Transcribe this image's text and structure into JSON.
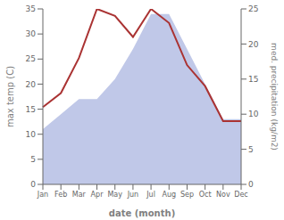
{
  "chart_data": {
    "type": "line",
    "categories": [
      "Jan",
      "Feb",
      "Mar",
      "Apr",
      "May",
      "Jun",
      "Jul",
      "Aug",
      "Sep",
      "Oct",
      "Nov",
      "Dec"
    ],
    "xlabel": "date (month)",
    "ylabel": "max temp (C)",
    "y2label": "med. precipitation (kg/m2)",
    "ylim": [
      0,
      35
    ],
    "yticks": [
      0,
      5,
      10,
      15,
      20,
      25,
      30,
      35
    ],
    "y2lim": [
      0,
      25
    ],
    "y2ticks": [
      0,
      5,
      10,
      15,
      20,
      25
    ],
    "series": [
      {
        "type": "area",
        "color": "#c0c8e8",
        "values": [
          11,
          14,
          17,
          17,
          21,
          27,
          34,
          34,
          27,
          20,
          13,
          13
        ]
      },
      {
        "type": "line",
        "color": "#aa3333",
        "axis": "y2",
        "values": [
          11,
          13,
          18,
          25,
          24,
          21,
          25,
          23,
          17,
          14,
          9,
          9
        ]
      }
    ]
  }
}
